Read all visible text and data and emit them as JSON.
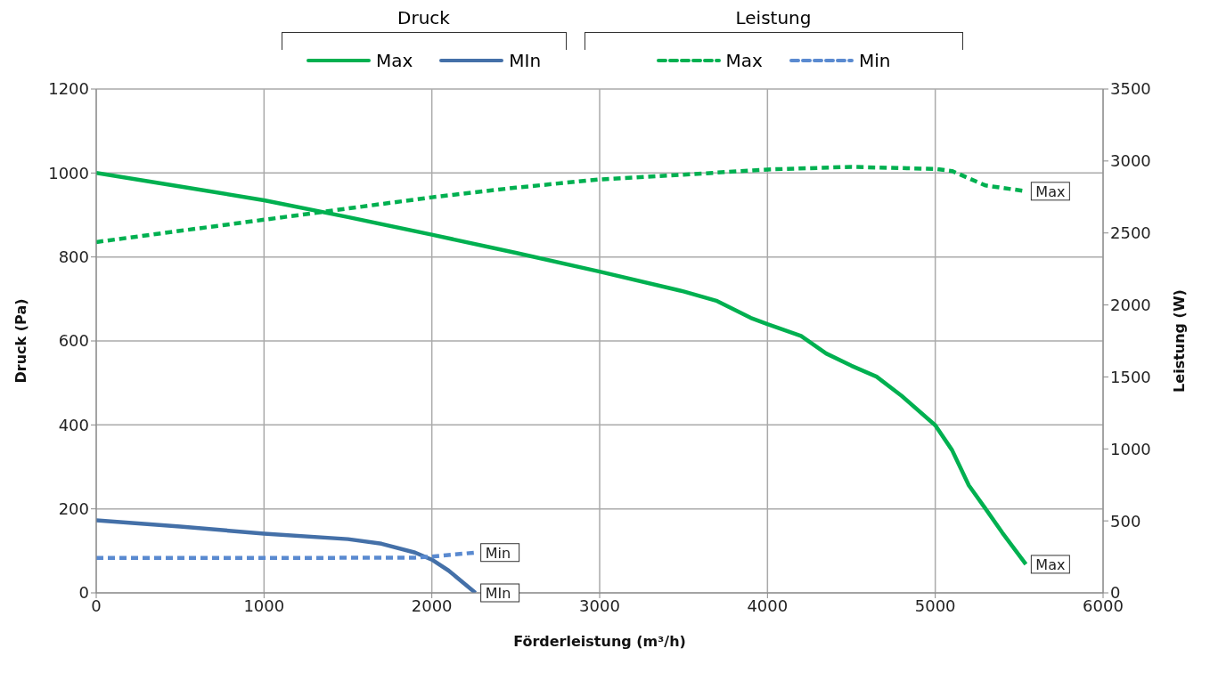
{
  "chart_data": {
    "type": "line",
    "xlabel": "Förderleistung (m³/h)",
    "ylabel": "Druck (Pa)",
    "y2label": "Leistung (W)",
    "annotations": [
      "Druck",
      "Leistung"
    ],
    "xlim": [
      0,
      6000
    ],
    "xticks": [
      0,
      1000,
      2000,
      3000,
      4000,
      5000,
      6000
    ],
    "ylim": [
      0,
      1200
    ],
    "yticks": [
      0,
      200,
      400,
      600,
      800,
      1000,
      1200
    ],
    "y2lim": [
      0,
      3500
    ],
    "y2ticks": [
      0,
      500,
      1000,
      1500,
      2000,
      2500,
      3000,
      3500
    ],
    "grid": true,
    "legend": "top",
    "marker": "none",
    "series": [
      {
        "name": "Max",
        "color": "#00b050",
        "line_style": "solid",
        "x": [
          0,
          500,
          1000,
          1500,
          2000,
          2500,
          3000,
          3500,
          3700,
          3900,
          4000,
          4200,
          4350,
          4500,
          4650,
          4800,
          5000,
          5100,
          5200,
          5300,
          5400,
          5540
        ],
        "values": [
          1000,
          968,
          935,
          895,
          853,
          810,
          765,
          718,
          695,
          655,
          640,
          612,
          570,
          541,
          515,
          469,
          399,
          340,
          256,
          200,
          143,
          68
        ]
      },
      {
        "name": "MIn",
        "color": "#4470a8",
        "line_style": "solid",
        "x": [
          0,
          500,
          1000,
          1500,
          1700,
          1900,
          2000,
          2100,
          2260
        ],
        "values": [
          173,
          158,
          141,
          128,
          117,
          96,
          79,
          53,
          0
        ]
      },
      {
        "name": "Max",
        "color": "#00b050",
        "line_style": "dashed",
        "axis": "y2",
        "x": [
          0,
          500,
          1000,
          1500,
          2000,
          2500,
          3000,
          3500,
          4000,
          4500,
          5000,
          5100,
          5300,
          5540
        ],
        "values": [
          2437,
          2515,
          2592,
          2670,
          2748,
          2815,
          2872,
          2905,
          2941,
          2959,
          2945,
          2930,
          2830,
          2790
        ]
      },
      {
        "name": "Min",
        "color": "#5a8ad0",
        "line_style": "dashed",
        "axis": "y2",
        "x": [
          0,
          1000,
          1900,
          2000,
          2260
        ],
        "values": [
          242,
          242,
          245,
          252,
          280
        ]
      }
    ]
  }
}
